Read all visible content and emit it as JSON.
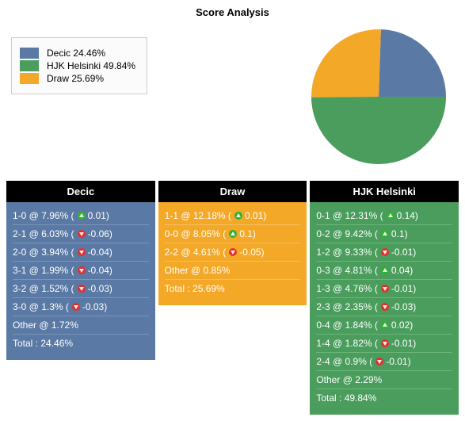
{
  "title": "Score Analysis",
  "colors": {
    "decic": "#5a79a5",
    "hjk": "#4a9d5d",
    "draw": "#f4a828",
    "up": "#2fb22f",
    "down": "#e03030",
    "rule_decic": "#7a94ba",
    "rule_draw": "#f7c05e",
    "rule_hjk": "#6cb57a"
  },
  "legend": [
    {
      "label": "Decic 24.46%",
      "colorKey": "decic"
    },
    {
      "label": "HJK Helsinki 49.84%",
      "colorKey": "hjk"
    },
    {
      "label": "Draw 25.69%",
      "colorKey": "draw"
    }
  ],
  "pie": {
    "size": 170,
    "slices": [
      {
        "colorKey": "decic",
        "pct": 24.46
      },
      {
        "colorKey": "draw",
        "pct": 25.69
      },
      {
        "colorKey": "hjk",
        "pct": 49.84
      }
    ]
  },
  "columns": [
    {
      "header": "Decic",
      "bgKey": "decic",
      "ruleKey": "rule_decic",
      "rows": [
        {
          "text": "1-0 @ 7.96% (",
          "delta": "0.01",
          "dir": "up",
          "tail": ")"
        },
        {
          "text": "2-1 @ 6.03% (",
          "delta": "-0.06",
          "dir": "down",
          "tail": ")"
        },
        {
          "text": "2-0 @ 3.94% (",
          "delta": "-0.04",
          "dir": "down",
          "tail": ")"
        },
        {
          "text": "3-1 @ 1.99% (",
          "delta": "-0.04",
          "dir": "down",
          "tail": ")"
        },
        {
          "text": "3-2 @ 1.52% (",
          "delta": "-0.03",
          "dir": "down",
          "tail": ")"
        },
        {
          "text": "3-0 @ 1.3% (",
          "delta": "-0.03",
          "dir": "down",
          "tail": ")"
        },
        {
          "text": "Other @ 1.72%"
        },
        {
          "text": "Total : 24.46%"
        }
      ]
    },
    {
      "header": "Draw",
      "bgKey": "draw",
      "ruleKey": "rule_draw",
      "rows": [
        {
          "text": "1-1 @ 12.18% (",
          "delta": "0.01",
          "dir": "up",
          "tail": ")"
        },
        {
          "text": "0-0 @ 8.05% (",
          "delta": "0.1",
          "dir": "up",
          "tail": ")"
        },
        {
          "text": "2-2 @ 4.61% (",
          "delta": "-0.05",
          "dir": "down",
          "tail": ")"
        },
        {
          "text": "Other @ 0.85%"
        },
        {
          "text": "Total : 25.69%"
        }
      ]
    },
    {
      "header": "HJK Helsinki",
      "bgKey": "hjk",
      "ruleKey": "rule_hjk",
      "rows": [
        {
          "text": "0-1 @ 12.31% (",
          "delta": "0.14",
          "dir": "up",
          "tail": ")"
        },
        {
          "text": "0-2 @ 9.42% (",
          "delta": "0.1",
          "dir": "up",
          "tail": ")"
        },
        {
          "text": "1-2 @ 9.33% (",
          "delta": "-0.01",
          "dir": "down",
          "tail": ")"
        },
        {
          "text": "0-3 @ 4.81% (",
          "delta": "0.04",
          "dir": "up",
          "tail": ")"
        },
        {
          "text": "1-3 @ 4.76% (",
          "delta": "-0.01",
          "dir": "down",
          "tail": ")"
        },
        {
          "text": "2-3 @ 2.35% (",
          "delta": "-0.03",
          "dir": "down",
          "tail": ")"
        },
        {
          "text": "0-4 @ 1.84% (",
          "delta": "0.02",
          "dir": "up",
          "tail": ")"
        },
        {
          "text": "1-4 @ 1.82% (",
          "delta": "-0.01",
          "dir": "down",
          "tail": ")"
        },
        {
          "text": "2-4 @ 0.9% (",
          "delta": "-0.01",
          "dir": "down",
          "tail": ")"
        },
        {
          "text": "Other @ 2.29%"
        },
        {
          "text": "Total : 49.84%"
        }
      ]
    }
  ]
}
